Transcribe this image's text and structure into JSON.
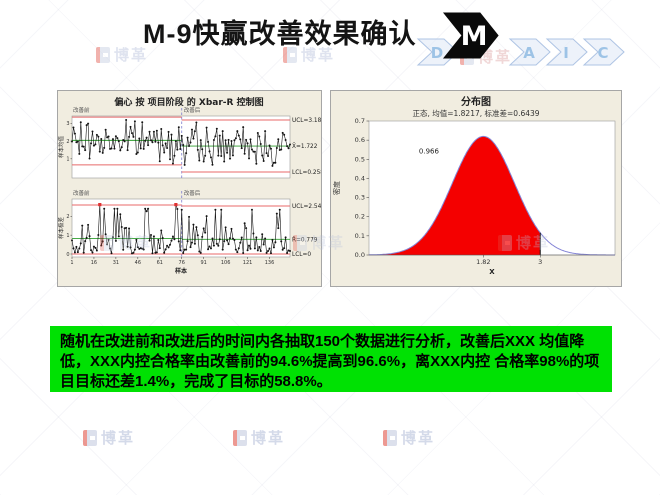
{
  "slide": {
    "title": "M-9快赢改善效果确认",
    "dmaic": {
      "steps": [
        {
          "letter": "D",
          "active": false
        },
        {
          "letter": "M",
          "active": true
        },
        {
          "letter": "A",
          "active": false
        },
        {
          "letter": "I",
          "active": false
        },
        {
          "letter": "C",
          "active": false
        }
      ]
    },
    "summary_text": "随机在改进前和改进后的时间内各抽取150个数据进行分析，改善后XXX 均值降低，XXX内控合格率由改善前的94.6%提高到96.6%，离XXX内控 合格率98%的项目目标还差1.4%，完成了目标的58.8%。",
    "summary_bg": "#00e103",
    "watermark": {
      "brand": "博革"
    }
  },
  "chart_data": [
    {
      "type": "line",
      "chart_kind": "xbar-r-control-chart",
      "title": "偏心 按 项目阶段 的 Xbar-R 控制图",
      "xlabel": "样本",
      "x_ticks": [
        1,
        16,
        31,
        46,
        61,
        76,
        91,
        106,
        121,
        136
      ],
      "n_samples": 150,
      "phases": [
        "改善前",
        "改善后"
      ],
      "phase_split_x": 76,
      "colors": {
        "limit": "#e86a6a",
        "center": "#2e9e2e",
        "series": "#141414",
        "divider": "#7c7ccd",
        "out_point": "#e03030",
        "plot_bg": "#ffffff"
      },
      "panels": [
        {
          "name": "Xbar",
          "ylabel": "样本均值",
          "y_ticks": [
            1,
            2,
            3
          ],
          "ucl_label": "UCL=3.187",
          "center_label": "X̄=1.722",
          "lcl_label": "LCL=0.258",
          "lines": {
            "phase1": {
              "ucl": 3.35,
              "center": 2.04,
              "lcl": 0.66
            },
            "phase2": {
              "ucl": 3.187,
              "center": 1.722,
              "lcl": 0.258
            }
          },
          "out_of_control_points": []
        },
        {
          "name": "R",
          "ylabel": "样本极差",
          "y_ticks": [
            0,
            1,
            2
          ],
          "ucl_label": "UCL=2.546",
          "center_label": "R̄=0.779",
          "lcl_label": "LCL=0",
          "lines": {
            "phase1": {
              "ucl": 2.6,
              "center": 0.82,
              "lcl": 0
            },
            "phase2": {
              "ucl": 2.546,
              "center": 0.779,
              "lcl": 0
            }
          },
          "out_of_control_points": [
            20,
            72
          ]
        }
      ]
    },
    {
      "type": "area",
      "chart_kind": "normal-distribution-plot",
      "title": "分布图",
      "subtitle": "正态, 均值=1.8217, 标准差=0.6439",
      "mean": 1.8217,
      "sd": 0.6439,
      "shade_to_x": 3,
      "shaded_area": 0.966,
      "annotation": "0.966",
      "annotation_at": [
        0.9,
        0.53
      ],
      "xlabel": "X",
      "ylabel": "密度",
      "x_ticks": [
        {
          "label": "1.82",
          "x": 1.82
        },
        {
          "label": "3",
          "x": 3
        }
      ],
      "y_ticks": [
        "0.0",
        "0.1",
        "0.2",
        "0.3",
        "0.4",
        "0.5",
        "0.6",
        "0.7"
      ],
      "xlim": [
        -0.55,
        4.55
      ],
      "ylim": [
        0,
        0.7
      ],
      "colors": {
        "fill": "#f40000",
        "curve": "#8585d6",
        "cutoff_line": "#111111"
      }
    }
  ]
}
